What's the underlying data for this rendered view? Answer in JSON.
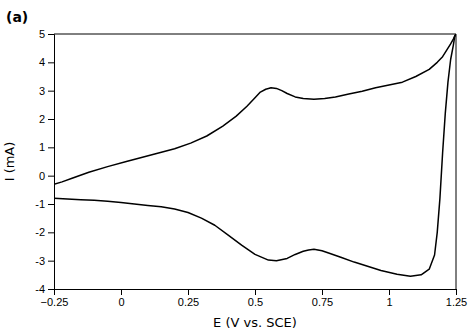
{
  "chart_data": {
    "type": "line",
    "xlabel": "E (V vs. SCE)",
    "ylabel": "I (mA)",
    "annotations": [
      "(a)"
    ],
    "xlim": [
      -0.25,
      1.25
    ],
    "ylim": [
      -4,
      5
    ],
    "xticks": [
      {
        "value": -0.25,
        "label": "−0.25"
      },
      0,
      0.25,
      0.5,
      0.75,
      1,
      1.25
    ],
    "yticks": [
      -4,
      -3,
      -2,
      -1,
      0,
      1,
      2,
      3,
      4,
      5
    ],
    "grid": false,
    "series": [
      {
        "color": "#000000",
        "x": [
          -0.25,
          -0.22,
          -0.18,
          -0.12,
          -0.05,
          0.02,
          0.08,
          0.14,
          0.2,
          0.26,
          0.32,
          0.38,
          0.43,
          0.47,
          0.5,
          0.52,
          0.54,
          0.56,
          0.58,
          0.6,
          0.62,
          0.65,
          0.68,
          0.72,
          0.76,
          0.8,
          0.85,
          0.9,
          0.95,
          1.0,
          1.05,
          1.1,
          1.15,
          1.18,
          1.2,
          1.22,
          1.23,
          1.24,
          1.245,
          1.25
        ],
        "values": [
          -0.3,
          -0.22,
          -0.08,
          0.12,
          0.32,
          0.5,
          0.65,
          0.8,
          0.95,
          1.15,
          1.4,
          1.75,
          2.1,
          2.45,
          2.75,
          2.95,
          3.05,
          3.1,
          3.08,
          3.0,
          2.9,
          2.78,
          2.72,
          2.7,
          2.72,
          2.78,
          2.88,
          2.98,
          3.1,
          3.2,
          3.3,
          3.5,
          3.75,
          4.0,
          4.2,
          4.5,
          4.65,
          4.82,
          4.93,
          5.0
        ]
      },
      {
        "color": "#000000",
        "x": [
          1.25,
          1.245,
          1.24,
          1.23,
          1.22,
          1.21,
          1.2,
          1.19,
          1.18,
          1.17,
          1.15,
          1.12,
          1.08,
          1.03,
          0.97,
          0.92,
          0.87,
          0.82,
          0.78,
          0.75,
          0.72,
          0.7,
          0.68,
          0.65,
          0.62,
          0.58,
          0.55,
          0.5,
          0.45,
          0.4,
          0.35,
          0.3,
          0.25,
          0.2,
          0.15,
          0.1,
          0.05,
          0.0,
          -0.05,
          -0.1,
          -0.15,
          -0.2,
          -0.25
        ],
        "values": [
          5.0,
          4.9,
          4.6,
          4.1,
          3.3,
          2.2,
          0.8,
          -0.8,
          -2.0,
          -2.8,
          -3.3,
          -3.5,
          -3.55,
          -3.48,
          -3.35,
          -3.2,
          -3.05,
          -2.88,
          -2.75,
          -2.65,
          -2.6,
          -2.62,
          -2.67,
          -2.78,
          -2.92,
          -3.0,
          -2.98,
          -2.78,
          -2.45,
          -2.1,
          -1.75,
          -1.5,
          -1.3,
          -1.18,
          -1.1,
          -1.05,
          -1.0,
          -0.95,
          -0.9,
          -0.87,
          -0.85,
          -0.82,
          -0.8
        ]
      }
    ]
  }
}
